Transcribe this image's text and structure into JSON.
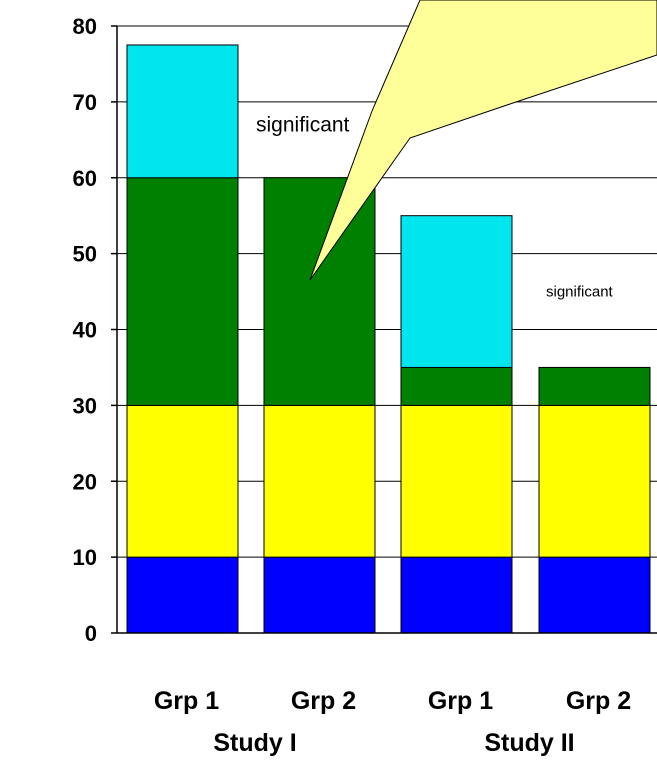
{
  "chart_data": {
    "type": "bar",
    "stacked": true,
    "categories": [
      "Grp 1",
      "Grp 2",
      "Grp 1",
      "Grp 2"
    ],
    "groups": [
      "Study I",
      "Study II"
    ],
    "category_group_index": [
      0,
      0,
      1,
      1
    ],
    "segments": [
      [
        {
          "from": 0,
          "to": 10,
          "color": "#0000ff"
        },
        {
          "from": 10,
          "to": 30,
          "color": "#ffff00"
        },
        {
          "from": 30,
          "to": 60,
          "color": "#008000"
        },
        {
          "from": 60,
          "to": 77.5,
          "color": "#00e5ee"
        }
      ],
      [
        {
          "from": 0,
          "to": 10,
          "color": "#0000ff"
        },
        {
          "from": 10,
          "to": 30,
          "color": "#ffff00"
        },
        {
          "from": 30,
          "to": 60,
          "color": "#008000"
        }
      ],
      [
        {
          "from": 0,
          "to": 10,
          "color": "#0000ff"
        },
        {
          "from": 10,
          "to": 30,
          "color": "#ffff00"
        },
        {
          "from": 30,
          "to": 35,
          "color": "#008000"
        },
        {
          "from": 35,
          "to": 55,
          "color": "#00e5ee"
        }
      ],
      [
        {
          "from": 0,
          "to": 10,
          "color": "#0000ff"
        },
        {
          "from": 10,
          "to": 30,
          "color": "#ffff00"
        },
        {
          "from": 30,
          "to": 35,
          "color": "#008000"
        }
      ]
    ],
    "yticks": [
      0,
      10,
      20,
      30,
      40,
      50,
      60,
      70,
      80
    ],
    "ylim": [
      0,
      80
    ],
    "grid": true,
    "annotations": [
      {
        "text": "significant",
        "y": 67
      },
      {
        "text": "significant",
        "y": 45
      }
    ],
    "callout_color": "#ffff99"
  }
}
